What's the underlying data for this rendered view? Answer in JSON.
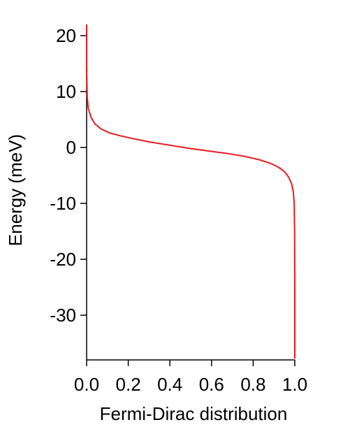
{
  "chart_data": {
    "type": "line",
    "title": "",
    "xlabel": "Fermi-Dirac distribution",
    "ylabel": "Energy (meV)",
    "xlim": [
      0.0,
      1.0
    ],
    "ylim": [
      -38,
      22
    ],
    "grid": false,
    "legend": "none",
    "x_ticks": [
      {
        "value": 0.0,
        "label": "0.0"
      },
      {
        "value": 0.2,
        "label": "0.2"
      },
      {
        "value": 0.4,
        "label": "0.4"
      },
      {
        "value": 0.6,
        "label": "0.6"
      },
      {
        "value": 0.8,
        "label": "0.8"
      },
      {
        "value": 1.0,
        "label": "1.0"
      }
    ],
    "y_ticks": [
      {
        "value": 20,
        "label": "20"
      },
      {
        "value": 10,
        "label": "10"
      },
      {
        "value": 0,
        "label": "0"
      },
      {
        "value": -10,
        "label": "-10"
      },
      {
        "value": -20,
        "label": "-20"
      },
      {
        "value": -30,
        "label": "-30"
      }
    ],
    "series": [
      {
        "color": "#e8191e",
        "points": [
          [
            0.0,
            22.0
          ],
          [
            0.0,
            15.0
          ],
          [
            0.001,
            12.0
          ],
          [
            0.003,
            9.0
          ],
          [
            0.008,
            7.0
          ],
          [
            0.02,
            5.5
          ],
          [
            0.04,
            4.2
          ],
          [
            0.07,
            3.3
          ],
          [
            0.11,
            2.6
          ],
          [
            0.16,
            2.1
          ],
          [
            0.22,
            1.6
          ],
          [
            0.3,
            1.0
          ],
          [
            0.4,
            0.4
          ],
          [
            0.5,
            -0.2
          ],
          [
            0.6,
            -0.7
          ],
          [
            0.68,
            -1.1
          ],
          [
            0.76,
            -1.6
          ],
          [
            0.83,
            -2.2
          ],
          [
            0.88,
            -2.8
          ],
          [
            0.92,
            -3.5
          ],
          [
            0.95,
            -4.3
          ],
          [
            0.97,
            -5.3
          ],
          [
            0.985,
            -6.5
          ],
          [
            0.993,
            -8.0
          ],
          [
            0.997,
            -10.0
          ],
          [
            0.999,
            -15.0
          ],
          [
            1.0,
            -25.0
          ],
          [
            1.0,
            -37.8
          ]
        ]
      }
    ]
  }
}
